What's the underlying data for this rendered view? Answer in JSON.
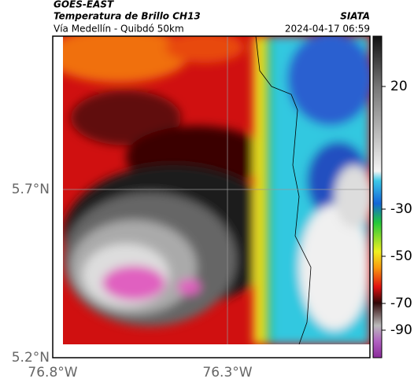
{
  "header": {
    "source": "GOES-EAST",
    "title": "Temperatura de Brillo CH13",
    "org": "SIATA",
    "subtitle": "Vía Medellín - Quibdó 50km",
    "timestamp": "2024-04-17 06:59"
  },
  "axes": {
    "y_labels": [
      "5.7°N",
      "5.2°N"
    ],
    "x_labels": [
      "76.8°W",
      "76.3°W"
    ]
  },
  "colorbar": {
    "ticks": [
      20,
      -30,
      -50,
      -70,
      -90
    ]
  }
}
